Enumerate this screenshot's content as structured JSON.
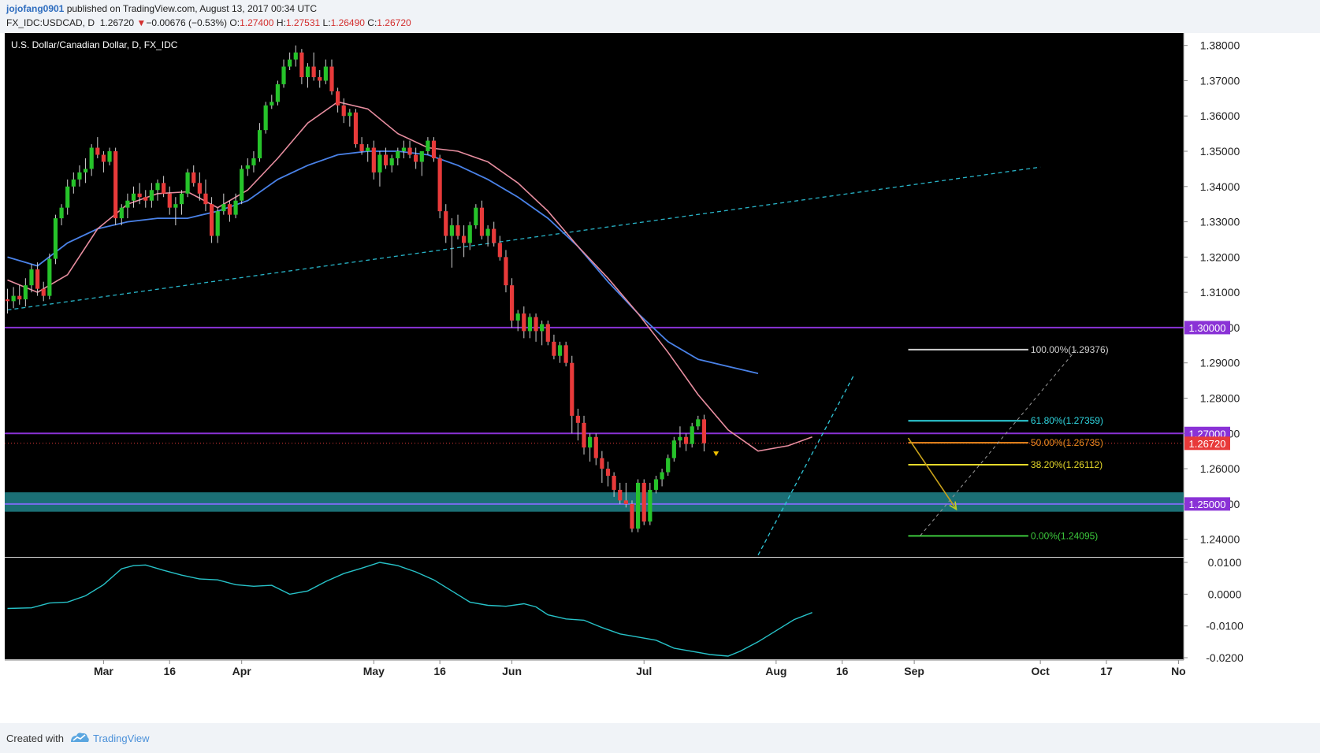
{
  "header": {
    "author": "jojofang0901",
    "published": " published on TradingView.com, August 13, 2017 00:34 UTC",
    "symbol": "FX_IDC:USDCAD, D",
    "last": "1.26720",
    "arrow": "▼",
    "change": "−0.00676 (−0.53%)",
    "open_label": "O:",
    "open": "1.27400",
    "high_label": "H:",
    "high": "1.27531",
    "low_label": "L:",
    "low": "1.26490",
    "close_label": "C:",
    "close": "1.26720"
  },
  "footer": {
    "created_with": "Created with",
    "brand": "TradingView"
  },
  "colors": {
    "background": "#000000",
    "up": "#26c32a",
    "down": "#e83a3a",
    "ma_fast": "#e88ea0",
    "ma_slow": "#4a82e8",
    "oscillator": "#27c2c8",
    "level": "#8a32d6",
    "trend": "#28b4c8",
    "zone": "#1e7b82"
  },
  "chart_data": {
    "type": "candlestick",
    "title": "U.S. Dollar/Canadian Dollar, D, FX_IDC",
    "ylim": [
      1.235,
      1.3835
    ],
    "y_ticks": [
      "1.24000",
      "1.25000",
      "1.26000",
      "1.27000",
      "1.28000",
      "1.29000",
      "1.30000",
      "1.31000",
      "1.32000",
      "1.33000",
      "1.34000",
      "1.35000",
      "1.36000",
      "1.37000",
      "1.38000"
    ],
    "x_labels": [
      {
        "label": "Mar",
        "i": 16
      },
      {
        "label": "16",
        "i": 27
      },
      {
        "label": "Apr",
        "i": 39
      },
      {
        "label": "May",
        "i": 61
      },
      {
        "label": "16",
        "i": 72
      },
      {
        "label": "Jun",
        "i": 84
      },
      {
        "label": "Jul",
        "i": 106
      },
      {
        "label": "Aug",
        "i": 128
      },
      {
        "label": "16",
        "i": 139
      },
      {
        "label": "Sep",
        "i": 151
      },
      {
        "label": "Oct",
        "i": 172
      },
      {
        "label": "17",
        "i": 183
      },
      {
        "label": "No",
        "i": 195
      }
    ],
    "candles": [
      [
        1.308,
        1.311,
        1.304,
        1.3075
      ],
      [
        1.3075,
        1.3115,
        1.3055,
        1.309
      ],
      [
        1.309,
        1.312,
        1.3065,
        1.308
      ],
      [
        1.308,
        1.314,
        1.306,
        1.312
      ],
      [
        1.312,
        1.318,
        1.31,
        1.3165
      ],
      [
        1.3165,
        1.3185,
        1.309,
        1.311
      ],
      [
        1.311,
        1.313,
        1.3075,
        1.309
      ],
      [
        1.309,
        1.321,
        1.308,
        1.3195
      ],
      [
        1.3195,
        1.332,
        1.318,
        1.331
      ],
      [
        1.331,
        1.335,
        1.329,
        1.334
      ],
      [
        1.334,
        1.342,
        1.332,
        1.34
      ],
      [
        1.34,
        1.344,
        1.338,
        1.342
      ],
      [
        1.342,
        1.346,
        1.34,
        1.344
      ],
      [
        1.344,
        1.348,
        1.341,
        1.345
      ],
      [
        1.345,
        1.352,
        1.343,
        1.351
      ],
      [
        1.351,
        1.354,
        1.348,
        1.349
      ],
      [
        1.349,
        1.35,
        1.344,
        1.347
      ],
      [
        1.347,
        1.351,
        1.346,
        1.35
      ],
      [
        1.35,
        1.351,
        1.329,
        1.331
      ],
      [
        1.331,
        1.335,
        1.329,
        1.334
      ],
      [
        1.334,
        1.338,
        1.331,
        1.336
      ],
      [
        1.336,
        1.34,
        1.334,
        1.338
      ],
      [
        1.338,
        1.341,
        1.335,
        1.337
      ],
      [
        1.337,
        1.339,
        1.334,
        1.336
      ],
      [
        1.336,
        1.341,
        1.334,
        1.339
      ],
      [
        1.339,
        1.342,
        1.336,
        1.341
      ],
      [
        1.341,
        1.343,
        1.337,
        1.338
      ],
      [
        1.338,
        1.34,
        1.332,
        1.334
      ],
      [
        1.334,
        1.337,
        1.329,
        1.335
      ],
      [
        1.335,
        1.339,
        1.332,
        1.338
      ],
      [
        1.338,
        1.345,
        1.337,
        1.344
      ],
      [
        1.344,
        1.346,
        1.34,
        1.341
      ],
      [
        1.341,
        1.344,
        1.336,
        1.338
      ],
      [
        1.338,
        1.342,
        1.333,
        1.335
      ],
      [
        1.335,
        1.337,
        1.324,
        1.326
      ],
      [
        1.326,
        1.334,
        1.324,
        1.333
      ],
      [
        1.333,
        1.338,
        1.332,
        1.335
      ],
      [
        1.335,
        1.336,
        1.33,
        1.332
      ],
      [
        1.332,
        1.338,
        1.331,
        1.336
      ],
      [
        1.336,
        1.346,
        1.335,
        1.345
      ],
      [
        1.345,
        1.348,
        1.343,
        1.346
      ],
      [
        1.346,
        1.35,
        1.344,
        1.348
      ],
      [
        1.348,
        1.358,
        1.347,
        1.356
      ],
      [
        1.356,
        1.364,
        1.355,
        1.363
      ],
      [
        1.363,
        1.366,
        1.362,
        1.364
      ],
      [
        1.364,
        1.37,
        1.363,
        1.369
      ],
      [
        1.369,
        1.376,
        1.368,
        1.374
      ],
      [
        1.374,
        1.378,
        1.373,
        1.376
      ],
      [
        1.376,
        1.38,
        1.374,
        1.378
      ],
      [
        1.378,
        1.379,
        1.369,
        1.371
      ],
      [
        1.371,
        1.375,
        1.368,
        1.374
      ],
      [
        1.374,
        1.378,
        1.37,
        1.371
      ],
      [
        1.371,
        1.373,
        1.368,
        1.37
      ],
      [
        1.37,
        1.376,
        1.369,
        1.374
      ],
      [
        1.374,
        1.376,
        1.366,
        1.367
      ],
      [
        1.367,
        1.368,
        1.361,
        1.363
      ],
      [
        1.363,
        1.365,
        1.358,
        1.36
      ],
      [
        1.36,
        1.362,
        1.357,
        1.361
      ],
      [
        1.361,
        1.362,
        1.351,
        1.352
      ],
      [
        1.352,
        1.354,
        1.349,
        1.35
      ],
      [
        1.35,
        1.352,
        1.347,
        1.351
      ],
      [
        1.351,
        1.353,
        1.342,
        1.344
      ],
      [
        1.344,
        1.35,
        1.34,
        1.349
      ],
      [
        1.349,
        1.351,
        1.345,
        1.346
      ],
      [
        1.346,
        1.349,
        1.344,
        1.348
      ],
      [
        1.348,
        1.351,
        1.346,
        1.35
      ],
      [
        1.35,
        1.353,
        1.348,
        1.351
      ],
      [
        1.351,
        1.353,
        1.348,
        1.349
      ],
      [
        1.349,
        1.351,
        1.345,
        1.347
      ],
      [
        1.347,
        1.35,
        1.343,
        1.35
      ],
      [
        1.35,
        1.354,
        1.349,
        1.353
      ],
      [
        1.353,
        1.354,
        1.347,
        1.348
      ],
      [
        1.348,
        1.349,
        1.331,
        1.333
      ],
      [
        1.333,
        1.335,
        1.324,
        1.326
      ],
      [
        1.326,
        1.331,
        1.317,
        1.329
      ],
      [
        1.329,
        1.332,
        1.325,
        1.326
      ],
      [
        1.326,
        1.329,
        1.32,
        1.324
      ],
      [
        1.324,
        1.33,
        1.322,
        1.329
      ],
      [
        1.329,
        1.335,
        1.328,
        1.334
      ],
      [
        1.334,
        1.336,
        1.325,
        1.326
      ],
      [
        1.326,
        1.329,
        1.323,
        1.328
      ],
      [
        1.328,
        1.33,
        1.323,
        1.324
      ],
      [
        1.324,
        1.326,
        1.319,
        1.32
      ],
      [
        1.32,
        1.322,
        1.31,
        1.312
      ],
      [
        1.312,
        1.314,
        1.3,
        1.302
      ],
      [
        1.302,
        1.305,
        1.299,
        1.304
      ],
      [
        1.304,
        1.306,
        1.297,
        1.299
      ],
      [
        1.299,
        1.304,
        1.297,
        1.303
      ],
      [
        1.303,
        1.304,
        1.296,
        1.299
      ],
      [
        1.299,
        1.302,
        1.295,
        1.301
      ],
      [
        1.301,
        1.302,
        1.295,
        1.296
      ],
      [
        1.296,
        1.298,
        1.291,
        1.292
      ],
      [
        1.292,
        1.296,
        1.29,
        1.295
      ],
      [
        1.295,
        1.296,
        1.289,
        1.29
      ],
      [
        1.29,
        1.292,
        1.27,
        1.275
      ],
      [
        1.275,
        1.277,
        1.268,
        1.273
      ],
      [
        1.273,
        1.275,
        1.264,
        1.266
      ],
      [
        1.266,
        1.27,
        1.262,
        1.269
      ],
      [
        1.269,
        1.27,
        1.261,
        1.263
      ],
      [
        1.263,
        1.265,
        1.256,
        1.26
      ],
      [
        1.26,
        1.262,
        1.255,
        1.258
      ],
      [
        1.258,
        1.259,
        1.252,
        1.254
      ],
      [
        1.254,
        1.256,
        1.25,
        1.251
      ],
      [
        1.251,
        1.256,
        1.249,
        1.25
      ],
      [
        1.25,
        1.251,
        1.242,
        1.243
      ],
      [
        1.243,
        1.257,
        1.242,
        1.256
      ],
      [
        1.256,
        1.257,
        1.244,
        1.245
      ],
      [
        1.245,
        1.256,
        1.244,
        1.254
      ],
      [
        1.254,
        1.258,
        1.253,
        1.257
      ],
      [
        1.257,
        1.26,
        1.255,
        1.259
      ],
      [
        1.259,
        1.264,
        1.258,
        1.263
      ],
      [
        1.263,
        1.269,
        1.262,
        1.268
      ],
      [
        1.268,
        1.272,
        1.266,
        1.269
      ],
      [
        1.269,
        1.27,
        1.265,
        1.267
      ],
      [
        1.267,
        1.273,
        1.266,
        1.272
      ],
      [
        1.272,
        1.275,
        1.271,
        1.274
      ],
      [
        1.274,
        1.2753,
        1.2649,
        1.2672
      ]
    ],
    "ma_fast": [
      [
        0,
        1.3135
      ],
      [
        5,
        1.31
      ],
      [
        10,
        1.315
      ],
      [
        15,
        1.328
      ],
      [
        20,
        1.335
      ],
      [
        25,
        1.338
      ],
      [
        30,
        1.3385
      ],
      [
        35,
        1.334
      ],
      [
        40,
        1.339
      ],
      [
        45,
        1.348
      ],
      [
        50,
        1.358
      ],
      [
        55,
        1.364
      ],
      [
        60,
        1.362
      ],
      [
        65,
        1.355
      ],
      [
        70,
        1.351
      ],
      [
        75,
        1.35
      ],
      [
        80,
        1.347
      ],
      [
        85,
        1.341
      ],
      [
        90,
        1.333
      ],
      [
        95,
        1.323
      ],
      [
        100,
        1.314
      ],
      [
        105,
        1.304
      ],
      [
        110,
        1.293
      ],
      [
        115,
        1.281
      ],
      [
        120,
        1.271
      ],
      [
        125,
        1.265
      ],
      [
        130,
        1.2665
      ],
      [
        134,
        1.269
      ]
    ],
    "ma_slow": [
      [
        0,
        1.32
      ],
      [
        5,
        1.3175
      ],
      [
        10,
        1.324
      ],
      [
        15,
        1.328
      ],
      [
        20,
        1.33
      ],
      [
        25,
        1.331
      ],
      [
        30,
        1.331
      ],
      [
        35,
        1.333
      ],
      [
        40,
        1.336
      ],
      [
        45,
        1.342
      ],
      [
        50,
        1.346
      ],
      [
        55,
        1.349
      ],
      [
        60,
        1.35
      ],
      [
        65,
        1.35
      ],
      [
        70,
        1.349
      ],
      [
        75,
        1.346
      ],
      [
        80,
        1.342
      ],
      [
        85,
        1.337
      ],
      [
        90,
        1.331
      ],
      [
        95,
        1.323
      ],
      [
        100,
        1.313
      ],
      [
        105,
        1.304
      ],
      [
        110,
        1.296
      ],
      [
        115,
        1.291
      ],
      [
        120,
        1.289
      ],
      [
        125,
        1.287
      ]
    ],
    "levels": [
      {
        "value": 1.3,
        "label": "1.30000"
      },
      {
        "value": 1.27,
        "label": "1.27000"
      }
    ],
    "current_price": {
      "value": 1.2672,
      "label": "1.26720"
    },
    "support_zone": {
      "low": 1.2478,
      "high": 1.2533,
      "line": 1.25,
      "label": "1.25000"
    },
    "trendline_long": {
      "i1": 0,
      "p1": 1.305,
      "i2": 172,
      "p2": 1.3455
    },
    "trendline_short": {
      "i1": 125,
      "p1": 1.2355,
      "i2": 141,
      "p2": 1.2867
    },
    "down_marker": {
      "i": 118,
      "p": 1.264
    },
    "fib": {
      "i1": 150,
      "i2": 170,
      "levels": [
        {
          "value": 1.29376,
          "label": "100.00%(1.29376)",
          "color": "#cfcfcf"
        },
        {
          "value": 1.27359,
          "label": "61.80%(1.27359)",
          "color": "#2fd6e0"
        },
        {
          "value": 1.26735,
          "label": "50.00%(1.26735)",
          "color": "#f08a1e"
        },
        {
          "value": 1.26112,
          "label": "38.20%(1.26112)",
          "color": "#e6d92a"
        },
        {
          "value": 1.24095,
          "label": "0.00%(1.24095)",
          "color": "#3cc83c"
        }
      ]
    },
    "projection_arrow": {
      "i1": 150,
      "p1": 1.2687,
      "i2": 158,
      "p2": 1.2485
    },
    "projection_dashed": {
      "i1": 152,
      "p1": 1.241,
      "i2": 178,
      "p2": 1.2938
    },
    "oscillator": {
      "ylim": [
        -0.0205,
        0.0115
      ],
      "ticks": [
        "0.0100",
        "0.0000",
        "-0.0100",
        "-0.0200"
      ],
      "values": [
        [
          0,
          -0.0045
        ],
        [
          4,
          -0.0043
        ],
        [
          7,
          -0.0028
        ],
        [
          10,
          -0.0025
        ],
        [
          13,
          -0.0005
        ],
        [
          16,
          0.003
        ],
        [
          19,
          0.008
        ],
        [
          21,
          0.009
        ],
        [
          23,
          0.0092
        ],
        [
          26,
          0.0075
        ],
        [
          29,
          0.006
        ],
        [
          32,
          0.0048
        ],
        [
          35,
          0.0045
        ],
        [
          38,
          0.003
        ],
        [
          41,
          0.0025
        ],
        [
          44,
          0.0028
        ],
        [
          47,
          0.0
        ],
        [
          50,
          0.001
        ],
        [
          53,
          0.004
        ],
        [
          56,
          0.0065
        ],
        [
          59,
          0.0082
        ],
        [
          62,
          0.01
        ],
        [
          65,
          0.009
        ],
        [
          68,
          0.007
        ],
        [
          71,
          0.0045
        ],
        [
          74,
          0.001
        ],
        [
          77,
          -0.0025
        ],
        [
          80,
          -0.0035
        ],
        [
          83,
          -0.0038
        ],
        [
          86,
          -0.003
        ],
        [
          88,
          -0.004
        ],
        [
          90,
          -0.0065
        ],
        [
          93,
          -0.0078
        ],
        [
          96,
          -0.0082
        ],
        [
          99,
          -0.0105
        ],
        [
          102,
          -0.0125
        ],
        [
          105,
          -0.0135
        ],
        [
          108,
          -0.0145
        ],
        [
          111,
          -0.017
        ],
        [
          114,
          -0.018
        ],
        [
          117,
          -0.019
        ],
        [
          120,
          -0.0195
        ],
        [
          122,
          -0.018
        ],
        [
          125,
          -0.015
        ],
        [
          128,
          -0.0115
        ],
        [
          131,
          -0.008
        ],
        [
          134,
          -0.0058
        ]
      ]
    }
  }
}
